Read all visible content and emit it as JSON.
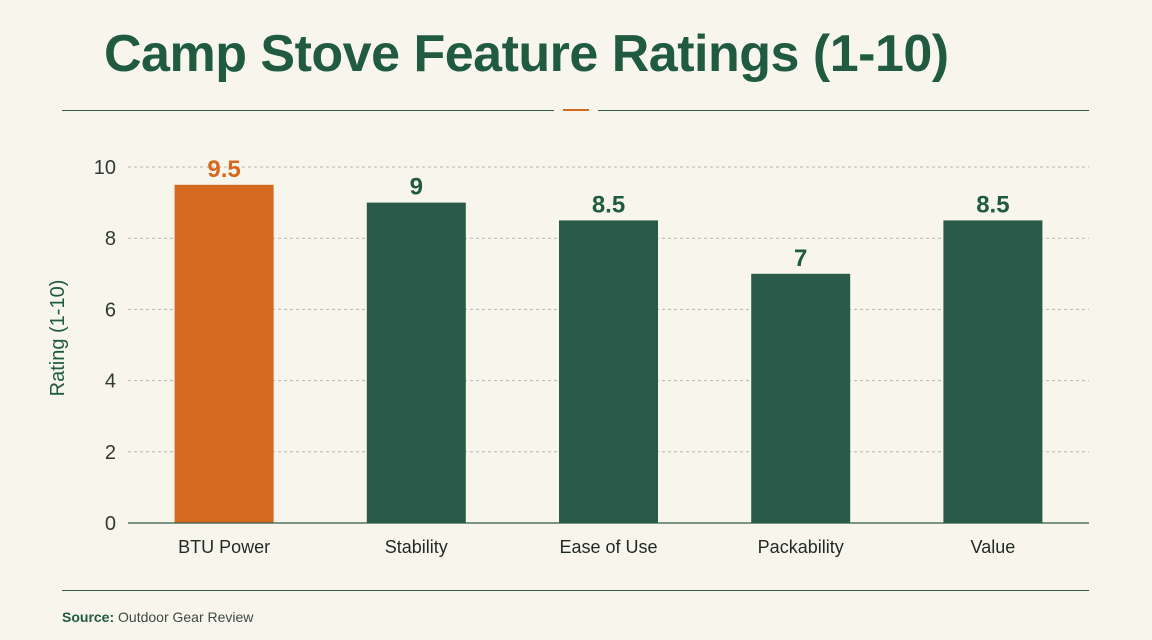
{
  "title": "Camp Stove Feature Ratings (1-10)",
  "source": {
    "label": "Source:",
    "text": "Outdoor Gear Review"
  },
  "colors": {
    "highlight": "#d5691d",
    "bar": "#2a5b4a",
    "text": "#1f5a41",
    "grid": "#b9b6ae"
  },
  "chart_data": {
    "type": "bar",
    "title": "Camp Stove Feature Ratings (1-10)",
    "xlabel": "",
    "ylabel": "Rating (1-10)",
    "categories": [
      "BTU Power",
      "Stability",
      "Ease of Use",
      "Packability",
      "Value"
    ],
    "values": [
      9.5,
      9,
      8.5,
      7,
      8.5
    ],
    "data_labels": [
      "9.5",
      "9",
      "8.5",
      "7",
      "8.5"
    ],
    "highlight_index": 0,
    "ylim": [
      0,
      10
    ],
    "yticks": [
      0,
      2,
      4,
      6,
      8,
      10
    ],
    "grid": true
  }
}
